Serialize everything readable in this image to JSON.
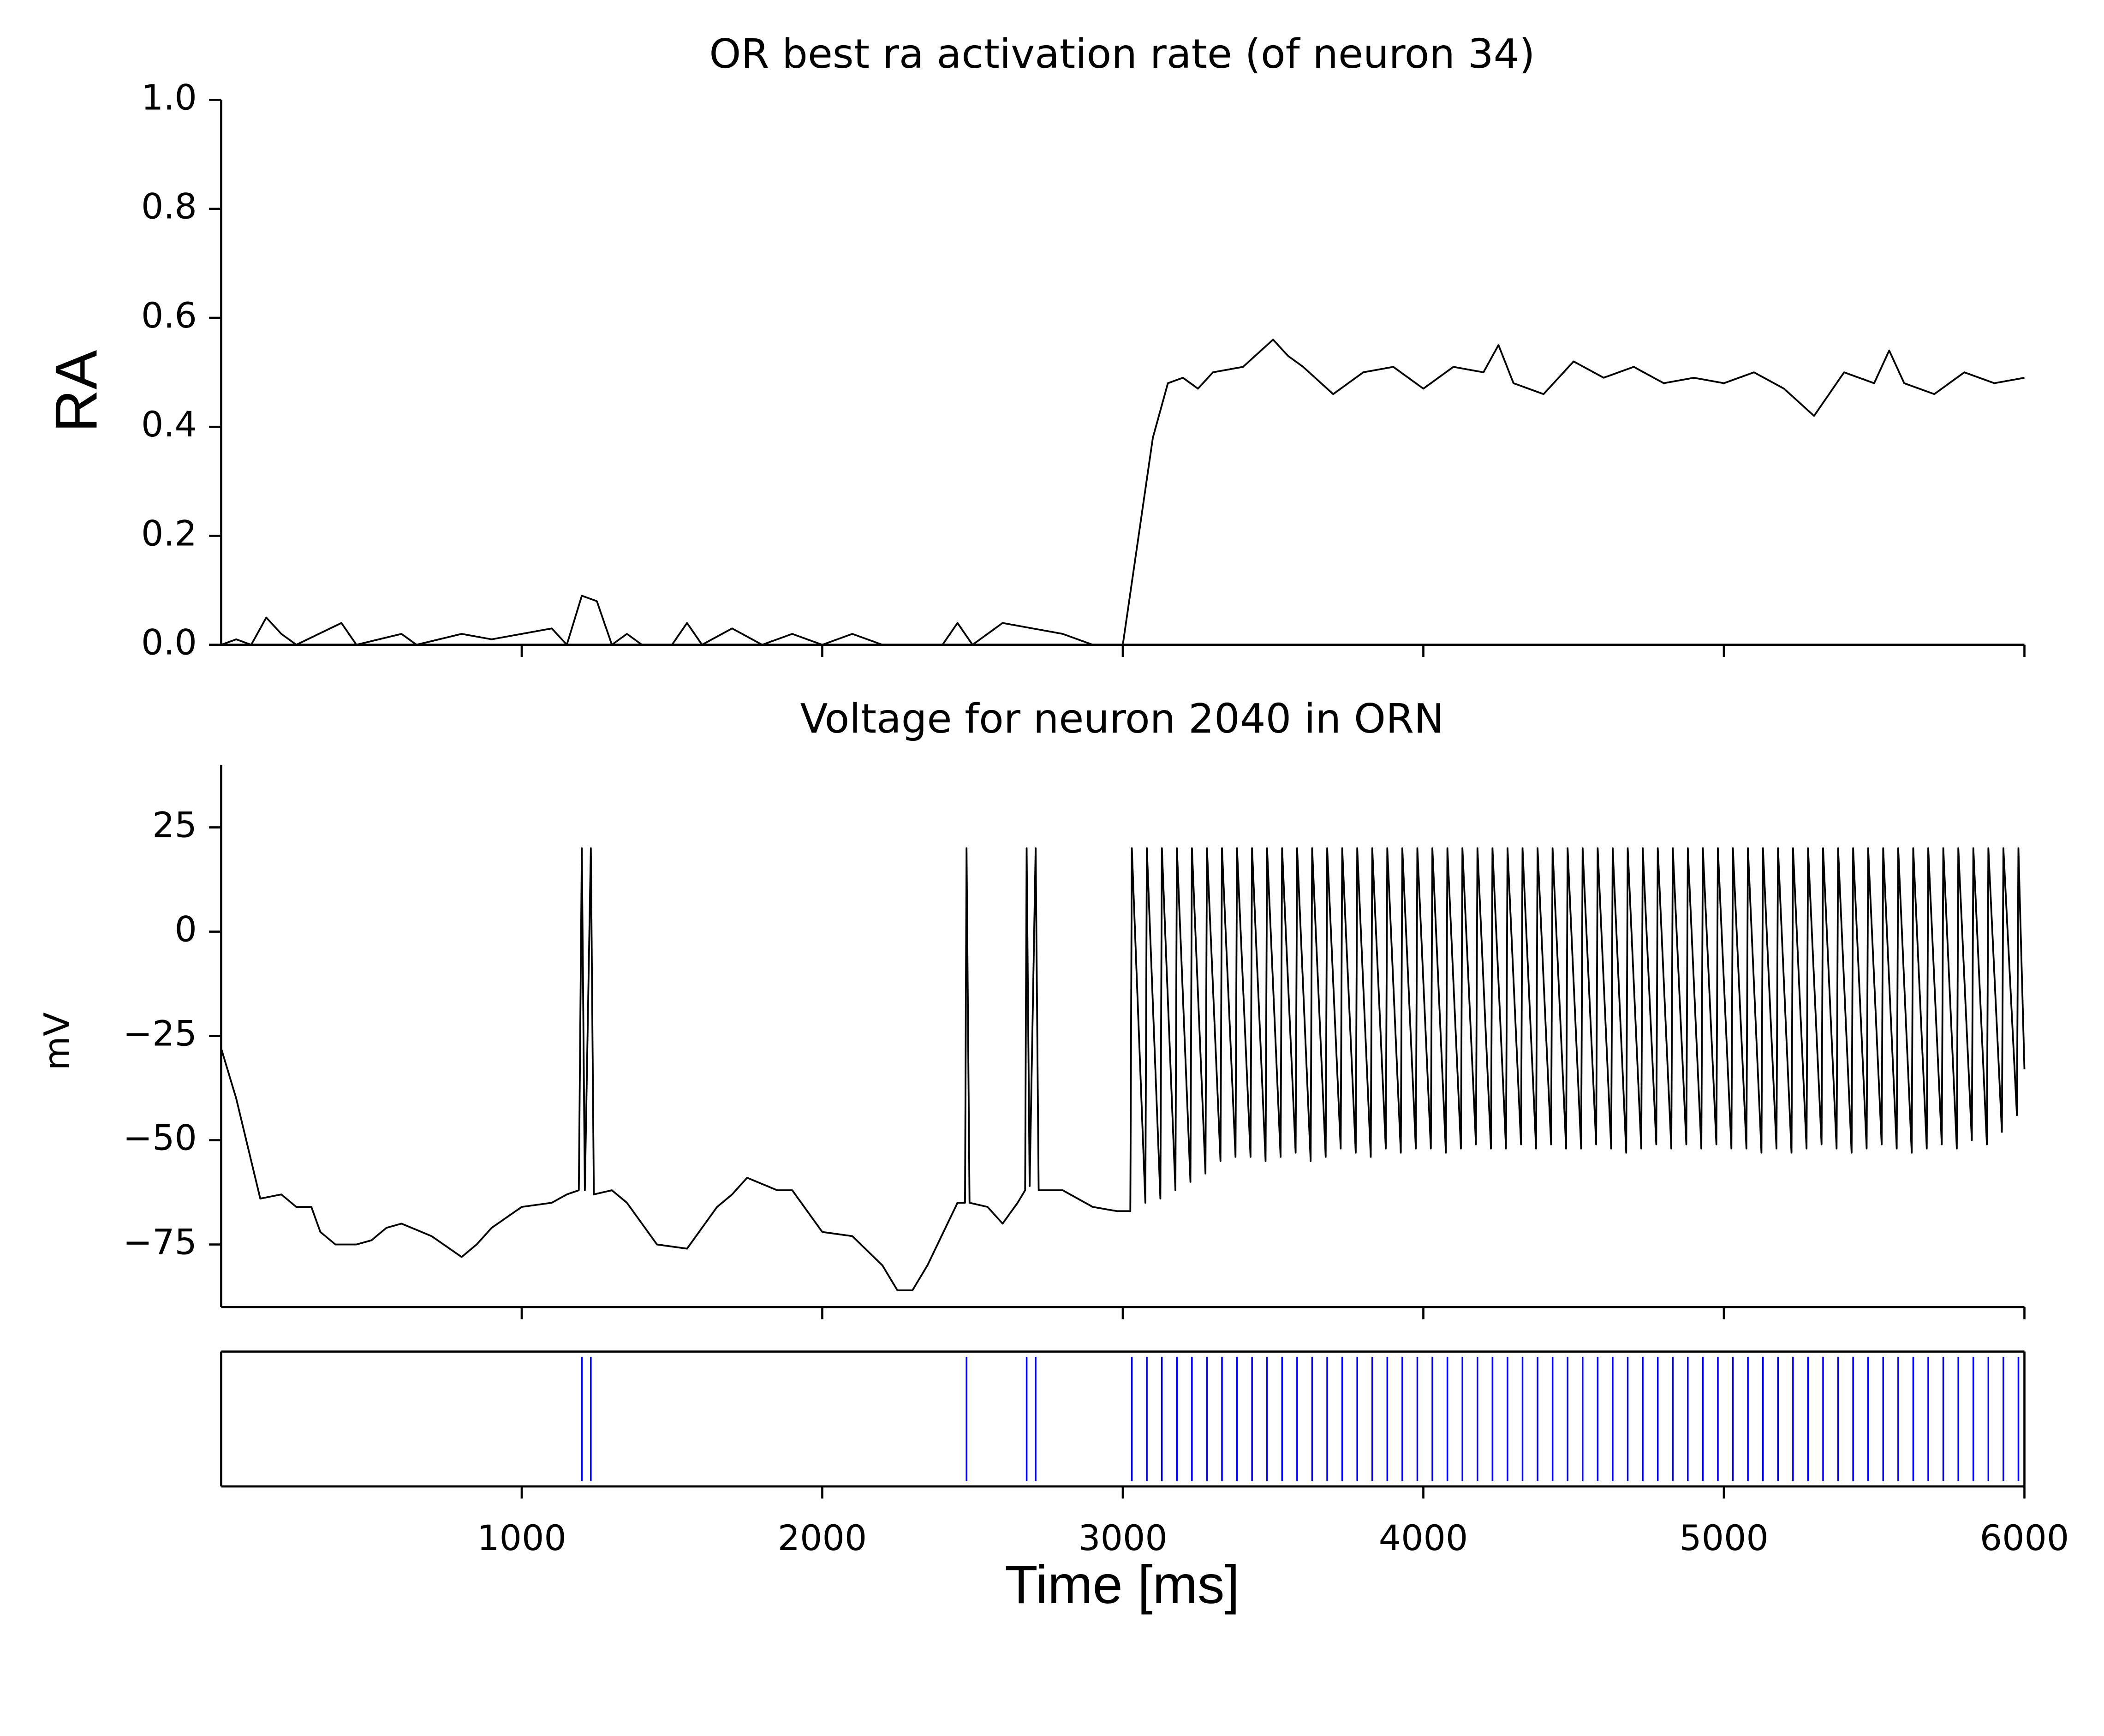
{
  "chart_data": [
    {
      "type": "line",
      "title": "OR best ra activation rate (of neuron 34)",
      "ylabel": "RA",
      "color": "#000000",
      "x": [
        0,
        50,
        100,
        150,
        200,
        250,
        400,
        450,
        600,
        650,
        800,
        900,
        1000,
        1100,
        1150,
        1200,
        1250,
        1300,
        1350,
        1400,
        1500,
        1550,
        1600,
        1700,
        1800,
        1900,
        2000,
        2100,
        2200,
        2400,
        2450,
        2500,
        2600,
        2700,
        2800,
        2900,
        3000,
        3050,
        3100,
        3150,
        3200,
        3250,
        3300,
        3400,
        3500,
        3550,
        3600,
        3700,
        3800,
        3900,
        4000,
        4100,
        4200,
        4250,
        4300,
        4400,
        4500,
        4600,
        4700,
        4800,
        4900,
        5000,
        5100,
        5200,
        5300,
        5400,
        5500,
        5550,
        5600,
        5700,
        5800,
        5900,
        6000
      ],
      "values": [
        0,
        0.01,
        0,
        0.05,
        0.02,
        0,
        0.04,
        0,
        0.02,
        0,
        0.02,
        0.01,
        0.02,
        0.03,
        0,
        0.09,
        0.08,
        0,
        0.02,
        0,
        0,
        0.04,
        0,
        0.03,
        0,
        0.02,
        0,
        0.02,
        0,
        0,
        0.04,
        0,
        0.04,
        0.03,
        0.02,
        0,
        0,
        0.19,
        0.38,
        0.48,
        0.49,
        0.47,
        0.5,
        0.51,
        0.56,
        0.53,
        0.51,
        0.46,
        0.5,
        0.51,
        0.47,
        0.51,
        0.5,
        0.55,
        0.48,
        0.46,
        0.52,
        0.49,
        0.51,
        0.48,
        0.49,
        0.48,
        0.5,
        0.47,
        0.42,
        0.5,
        0.48,
        0.54,
        0.48,
        0.46,
        0.5,
        0.48,
        0.49
      ],
      "xlim": [
        0,
        6000
      ],
      "xticks": [
        1000,
        2000,
        3000,
        4000,
        5000,
        6000
      ],
      "show_xtick_labels": false,
      "ylim": [
        0,
        1
      ],
      "yticks": [
        {
          "value": 0,
          "label": "0.0"
        },
        {
          "value": 0.2,
          "label": "0.2"
        },
        {
          "value": 0.4,
          "label": "0.4"
        },
        {
          "value": 0.6,
          "label": "0.6"
        },
        {
          "value": 0.8,
          "label": "0.8"
        },
        {
          "value": 1,
          "label": "1.0"
        }
      ]
    },
    {
      "type": "line",
      "title": "Voltage for neuron 2040 in ORN",
      "ylabel": "mV",
      "color": "#000000",
      "x": [
        0,
        50,
        100,
        130,
        200,
        250,
        300,
        330,
        380,
        450,
        500,
        550,
        600,
        700,
        800,
        850,
        900,
        1000,
        1100,
        1150,
        1190,
        1200,
        1210,
        1230,
        1240,
        1300,
        1350,
        1450,
        1550,
        1650,
        1700,
        1750,
        1850,
        1900,
        2000,
        2100,
        2200,
        2250,
        2300,
        2350,
        2450,
        2475,
        2480,
        2490,
        2550,
        2600,
        2650,
        2675,
        2680,
        2690,
        2710,
        2720,
        2800,
        2900,
        2980,
        3025,
        3030,
        3075,
        3080,
        3125,
        3130,
        3175,
        3180,
        3225,
        3230,
        3275,
        3280,
        3325,
        3330,
        3375,
        3380,
        3425,
        3430,
        3475,
        3480,
        3525,
        3530,
        3575,
        3580,
        3625,
        3630,
        3675,
        3680,
        3725,
        3730,
        3775,
        3780,
        3825,
        3830,
        3875,
        3880,
        3925,
        3930,
        3975,
        3980,
        4025,
        4030,
        4075,
        4080,
        4125,
        4130,
        4175,
        4180,
        4225,
        4230,
        4275,
        4280,
        4325,
        4330,
        4375,
        4380,
        4425,
        4430,
        4475,
        4480,
        4525,
        4530,
        4575,
        4580,
        4625,
        4630,
        4675,
        4680,
        4725,
        4730,
        4775,
        4780,
        4825,
        4830,
        4875,
        4880,
        4925,
        4930,
        4975,
        4980,
        5025,
        5030,
        5075,
        5080,
        5125,
        5130,
        5175,
        5180,
        5225,
        5230,
        5275,
        5280,
        5325,
        5330,
        5375,
        5380,
        5425,
        5430,
        5475,
        5480,
        5525,
        5530,
        5575,
        5580,
        5625,
        5630,
        5675,
        5680,
        5725,
        5730,
        5775,
        5780,
        5825,
        5830,
        5875,
        5880,
        5925,
        5930,
        5975,
        5980,
        6000
      ],
      "values": [
        -28,
        -40,
        -55,
        -64,
        -63,
        -66,
        -66,
        -72,
        -75,
        -75,
        -74,
        -71,
        -70,
        -73,
        -78,
        -75,
        -71,
        -66,
        -65,
        -63,
        -62,
        20,
        -62,
        20,
        -63,
        -62,
        -65,
        -75,
        -76,
        -66,
        -63,
        -59,
        -62,
        -62,
        -72,
        -73,
        -80,
        -86,
        -86,
        -80,
        -65,
        -65,
        20,
        -65,
        -66,
        -70,
        -65,
        -62,
        20,
        -61,
        20,
        -62,
        -62,
        -66,
        -67,
        -67,
        20,
        -65,
        20,
        -64,
        20,
        -62,
        20,
        -60,
        20,
        -58,
        20,
        -55,
        20,
        -54,
        20,
        -54,
        20,
        -55,
        20,
        -54,
        20,
        -53,
        20,
        -55,
        20,
        -54,
        20,
        -52,
        20,
        -53,
        20,
        -54,
        20,
        -52,
        20,
        -53,
        20,
        -52,
        20,
        -52,
        20,
        -53,
        20,
        -52,
        20,
        -51,
        20,
        -52,
        20,
        -52,
        20,
        -51,
        20,
        -52,
        20,
        -51,
        20,
        -52,
        20,
        -52,
        20,
        -51,
        20,
        -52,
        20,
        -53,
        20,
        -52,
        20,
        -51,
        20,
        -52,
        20,
        -51,
        20,
        -52,
        20,
        -51,
        20,
        -52,
        20,
        -52,
        20,
        -53,
        20,
        -52,
        20,
        -53,
        20,
        -52,
        20,
        -51,
        20,
        -52,
        20,
        -53,
        20,
        -52,
        20,
        -51,
        20,
        -52,
        20,
        -53,
        20,
        -52,
        20,
        -51,
        20,
        -52,
        20,
        -50,
        20,
        -51,
        20,
        -48,
        20,
        -44,
        20,
        -33
      ],
      "xlim": [
        0,
        6000
      ],
      "xticks": [
        1000,
        2000,
        3000,
        4000,
        5000,
        6000
      ],
      "show_xtick_labels": false,
      "ylim": [
        -90,
        40
      ],
      "yticks": [
        {
          "value": -75,
          "label": "−75"
        },
        {
          "value": -50,
          "label": "−50"
        },
        {
          "value": -25,
          "label": "−25"
        },
        0,
        25
      ]
    },
    {
      "type": "raster",
      "xlabel": "Time [ms]",
      "color": "#0000ff",
      "values": [
        1200,
        1230,
        2480,
        2680,
        2710,
        3030,
        3080,
        3130,
        3180,
        3230,
        3280,
        3330,
        3380,
        3430,
        3480,
        3530,
        3580,
        3630,
        3680,
        3730,
        3780,
        3830,
        3880,
        3930,
        3980,
        4030,
        4080,
        4130,
        4180,
        4230,
        4280,
        4330,
        4380,
        4430,
        4480,
        4530,
        4580,
        4630,
        4680,
        4730,
        4780,
        4830,
        4880,
        4930,
        4980,
        5030,
        5080,
        5130,
        5180,
        5230,
        5280,
        5330,
        5380,
        5430,
        5480,
        5530,
        5580,
        5630,
        5680,
        5730,
        5780,
        5830,
        5880,
        5930,
        5980
      ],
      "xlim": [
        0,
        6000
      ],
      "xticks": [
        1000,
        2000,
        3000,
        4000,
        5000,
        6000
      ],
      "show_xtick_labels": true
    }
  ]
}
